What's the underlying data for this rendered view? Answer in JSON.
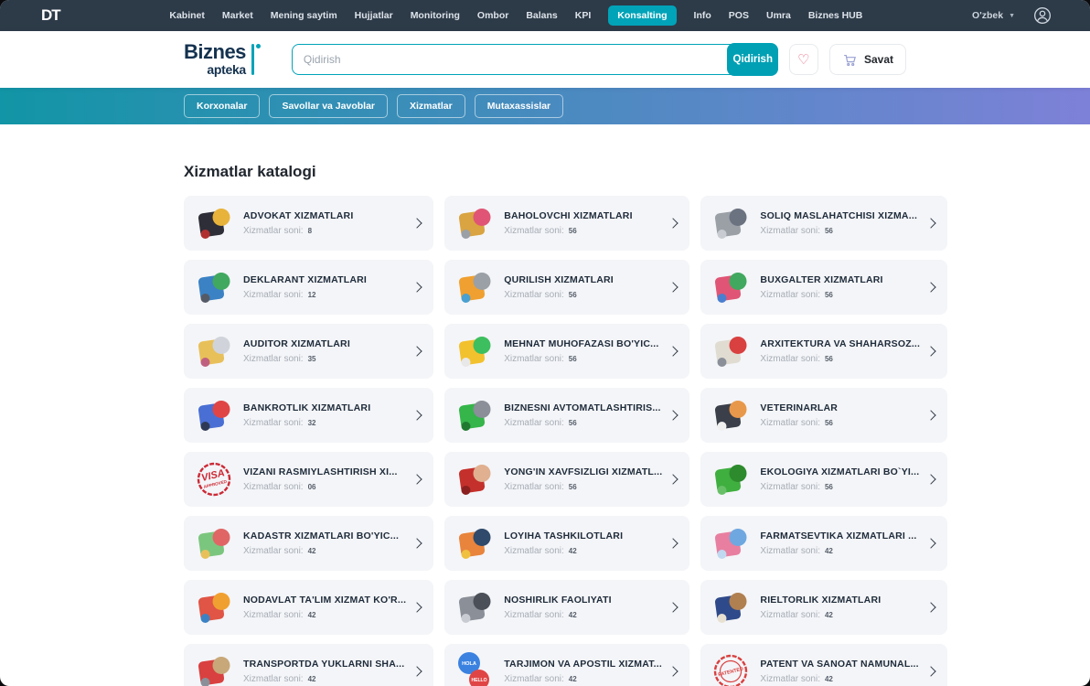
{
  "topbar": {
    "logo": "DT",
    "items": [
      {
        "label": "Kabinet",
        "active": false
      },
      {
        "label": "Market",
        "active": false
      },
      {
        "label": "Mening saytim",
        "active": false
      },
      {
        "label": "Hujjatlar",
        "active": false
      },
      {
        "label": "Monitoring",
        "active": false
      },
      {
        "label": "Ombor",
        "active": false
      },
      {
        "label": "Balans",
        "active": false
      },
      {
        "label": "KPI",
        "active": false
      },
      {
        "label": "Konsalting",
        "active": true
      },
      {
        "label": "Info",
        "active": false
      },
      {
        "label": "POS",
        "active": false
      },
      {
        "label": "Umra",
        "active": false
      },
      {
        "label": "Biznes HUB",
        "active": false
      }
    ],
    "language": "O'zbek"
  },
  "header": {
    "brand_line1": "Biznes",
    "brand_line2": "apteka",
    "search_placeholder": "Qidirish",
    "search_button": "Qidirish",
    "cart_label": "Savat"
  },
  "subnav": {
    "items": [
      "Korxonalar",
      "Savollar va Javoblar",
      "Xizmatlar",
      "Mutaxassislar"
    ],
    "gradient": [
      "#1295a6",
      "#7e81d8"
    ]
  },
  "colors": {
    "accent_teal": "#00a3b8",
    "topbar_bg": "#2d3a48",
    "card_bg": "#f4f5f8",
    "heart": "#e8607a"
  },
  "catalog": {
    "title": "Xizmatlar katalogi",
    "count_label": "Xizmatlar soni:",
    "cards": [
      {
        "title": "ADVOKAT XIZMATLARI",
        "count": "8",
        "icon": "advokat-icon",
        "style": "default",
        "colors": [
          "#2e2e38",
          "#e8b33a",
          "#b03030"
        ]
      },
      {
        "title": "BAHOLOVCHI XIZMATLARI",
        "count": "56",
        "icon": "baholovchi-icon",
        "style": "default",
        "colors": [
          "#d9a441",
          "#e05575",
          "#9aa0a6"
        ]
      },
      {
        "title": "SOLIQ MASLAHATCHISI XIZMA...",
        "count": "56",
        "icon": "soliq-maslahatchisi-icon",
        "style": "default",
        "colors": [
          "#9aa0a6",
          "#6b7280",
          "#c8ccd2"
        ]
      },
      {
        "title": "DEKLARANT XIZMATLARI",
        "count": "12",
        "icon": "deklarant-icon",
        "style": "default",
        "colors": [
          "#3b82c4",
          "#41a85f",
          "#555b66"
        ]
      },
      {
        "title": "QURILISH XIZMATLARI",
        "count": "56",
        "icon": "qurilish-icon",
        "style": "default",
        "colors": [
          "#f0a030",
          "#9aa0a6",
          "#4aa0d0"
        ]
      },
      {
        "title": "BUXGALTER XIZMATLARI",
        "count": "56",
        "icon": "buxgalter-icon",
        "style": "default",
        "colors": [
          "#e05575",
          "#41a85f",
          "#4a7fd0"
        ]
      },
      {
        "title": "AUDITOR XIZMATLARI",
        "count": "35",
        "icon": "auditor-icon",
        "style": "default",
        "colors": [
          "#e8c05a",
          "#d0d4da",
          "#c06080"
        ]
      },
      {
        "title": "MEHNAT MUHOFAZASI BO'YIC...",
        "count": "56",
        "icon": "mehnat-muhofazasi-icon",
        "style": "default",
        "colors": [
          "#f2c12e",
          "#3dbf5f",
          "#e8e8e8"
        ]
      },
      {
        "title": "ARXITEKTURA VA SHAHARSOZ...",
        "count": "56",
        "icon": "arxitektura-icon",
        "style": "default",
        "colors": [
          "#e0dcd2",
          "#d94040",
          "#8a8f98"
        ]
      },
      {
        "title": "BANKROTLIK XIZMATLARI",
        "count": "32",
        "icon": "bankrotlik-icon",
        "style": "default",
        "colors": [
          "#4a6fd4",
          "#e04545",
          "#2e3a55"
        ]
      },
      {
        "title": "BIZNESNI AVTOMATLASHTIRIS...",
        "count": "56",
        "icon": "avtomatlashtirish-icon",
        "style": "default",
        "colors": [
          "#35b54a",
          "#8a8f98",
          "#1f7a30"
        ]
      },
      {
        "title": "VETERINARLAR",
        "count": "56",
        "icon": "veterinar-icon",
        "style": "default",
        "colors": [
          "#3a3f4a",
          "#e8984a",
          "#f0f0f0"
        ]
      },
      {
        "title": "VIZANI RASMIYLASHTIRISH XI...",
        "count": "06",
        "icon": "visa-stamp-icon",
        "style": "stamp",
        "colors": [
          "#cc2936"
        ],
        "texts": [
          "VISA",
          "APPROVED"
        ]
      },
      {
        "title": "YONG'IN XAVFSIZLIGI XIZMATL...",
        "count": "56",
        "icon": "yongin-xavfsizligi-icon",
        "style": "default",
        "colors": [
          "#c4302b",
          "#e0b090",
          "#8a2020"
        ]
      },
      {
        "title": "EKOLOGIYA XIZMATLARI BO`YI...",
        "count": "56",
        "icon": "ekologiya-icon",
        "style": "default",
        "colors": [
          "#3faf3f",
          "#2d8a2d",
          "#67c067"
        ]
      },
      {
        "title": "KADASTR XIZMATLARI BO'YIC...",
        "count": "42",
        "icon": "kadastr-icon",
        "style": "default",
        "colors": [
          "#7bc67e",
          "#e06666",
          "#e8c05a"
        ]
      },
      {
        "title": "LOYIHA TASHKILOTLARI",
        "count": "42",
        "icon": "loyiha-icon",
        "style": "default",
        "colors": [
          "#e8843c",
          "#2f4a6b",
          "#f0c040"
        ]
      },
      {
        "title": "FARMATSEVTIKA XIZMATLARI ...",
        "count": "42",
        "icon": "farmatsevtika-icon",
        "style": "default",
        "colors": [
          "#e87fa0",
          "#6fa8e0",
          "#c0d8f0"
        ]
      },
      {
        "title": "NODAVLAT TA'LIM XIZMAT KO'R...",
        "count": "42",
        "icon": "talim-icon",
        "style": "default",
        "colors": [
          "#e05545",
          "#f0a030",
          "#3b82c4"
        ]
      },
      {
        "title": "NOSHIRLIK FAOLIYATI",
        "count": "42",
        "icon": "noshirlik-icon",
        "style": "default",
        "colors": [
          "#8a8f98",
          "#4a4f58",
          "#c8ccd2"
        ]
      },
      {
        "title": "RIELTORLIK XIZMATLARI",
        "count": "42",
        "icon": "rieltorlik-icon",
        "style": "default",
        "colors": [
          "#2f4a8a",
          "#b08050",
          "#e8e0d0"
        ]
      },
      {
        "title": "TRANSPORTDA YUKLARNI SHA...",
        "count": "42",
        "icon": "transport-icon",
        "style": "default",
        "colors": [
          "#d94040",
          "#c8a878",
          "#8a8f98"
        ]
      },
      {
        "title": "TARJIMON VA APOSTIL XIZMAT...",
        "count": "42",
        "icon": "tarjimon-icon",
        "style": "bubbles",
        "colors": [
          "#3b82e0",
          "#e04545"
        ],
        "texts": [
          "HOLA",
          "HELLO"
        ]
      },
      {
        "title": "PATENT VA SANOAT NAMUNAL...",
        "count": "42",
        "icon": "patent-stamp-icon",
        "style": "stamp",
        "colors": [
          "#d94040"
        ],
        "texts": [
          "PATENTED"
        ]
      }
    ]
  }
}
